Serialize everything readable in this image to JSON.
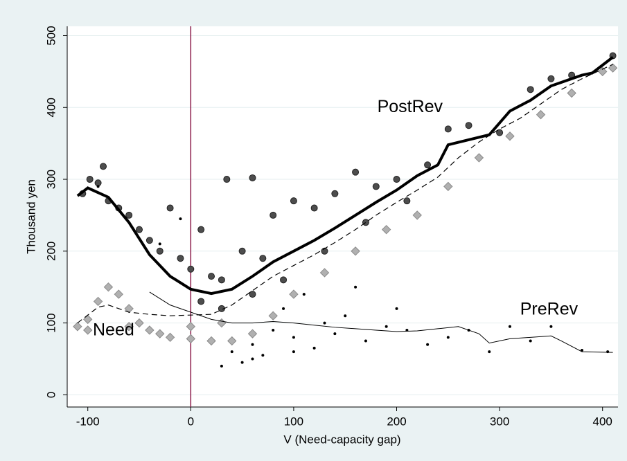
{
  "chart_data": {
    "type": "scatter",
    "x_label": "V (Need-capacity gap)",
    "y_label": "Thousand yen",
    "xlim": [
      -120,
      415
    ],
    "ylim": [
      -17,
      513
    ],
    "xticks": [
      -100,
      0,
      100,
      200,
      300,
      400
    ],
    "yticks": [
      0,
      100,
      200,
      300,
      400,
      500
    ],
    "grid": true,
    "vline": {
      "x": 0,
      "color": "#8b1a4a"
    },
    "annotations": [
      {
        "text": "PostRev",
        "x": 213,
        "y": 400
      },
      {
        "text": "PreRev",
        "x": 348,
        "y": 118
      },
      {
        "text": "Need",
        "x": -75,
        "y": 89
      }
    ],
    "series": [
      {
        "style": "diamond",
        "color": "#b0b0b0",
        "x": [
          -110,
          -100,
          -90,
          -80,
          -70,
          -60,
          -50,
          -40,
          -30,
          -20,
          0,
          20,
          40,
          60,
          80,
          100,
          130,
          160,
          190,
          220,
          250,
          280,
          310,
          340,
          370,
          400,
          410,
          -100,
          -60,
          0,
          30
        ],
        "values": [
          95,
          105,
          130,
          150,
          140,
          120,
          100,
          90,
          85,
          80,
          78,
          75,
          75,
          85,
          110,
          140,
          170,
          200,
          230,
          250,
          290,
          330,
          360,
          390,
          420,
          450,
          455,
          90,
          95,
          95,
          100
        ]
      },
      {
        "style": "circle",
        "color": "#4d4d4d",
        "x": [
          -105,
          -98,
          -90,
          -85,
          -80,
          -70,
          -60,
          -50,
          -40,
          -30,
          -20,
          -10,
          0,
          10,
          20,
          30,
          35,
          50,
          60,
          70,
          80,
          100,
          120,
          140,
          160,
          180,
          200,
          230,
          250,
          270,
          300,
          330,
          350,
          370,
          410,
          10,
          30,
          60,
          90,
          130,
          170,
          210
        ],
        "values": [
          280,
          300,
          295,
          318,
          270,
          260,
          250,
          230,
          215,
          200,
          260,
          190,
          175,
          230,
          165,
          160,
          300,
          200,
          302,
          190,
          250,
          270,
          260,
          280,
          310,
          290,
          300,
          320,
          370,
          375,
          365,
          425,
          440,
          445,
          472,
          130,
          120,
          140,
          160,
          200,
          240,
          270
        ]
      },
      {
        "style": "dot",
        "color": "#000000",
        "x": [
          40,
          50,
          60,
          70,
          80,
          90,
          100,
          110,
          120,
          130,
          140,
          160,
          170,
          190,
          210,
          230,
          250,
          270,
          290,
          310,
          330,
          350,
          380,
          405,
          -30,
          -10,
          -90,
          30,
          60,
          100,
          150,
          200
        ],
        "values": [
          60,
          45,
          70,
          55,
          90,
          120,
          80,
          140,
          65,
          100,
          85,
          150,
          75,
          95,
          90,
          70,
          80,
          90,
          60,
          95,
          75,
          95,
          62,
          60,
          210,
          245,
          290,
          40,
          50,
          60,
          110,
          120
        ]
      },
      {
        "style": "dashed-line",
        "color": "#000000",
        "x": [
          -110,
          -90,
          -80,
          -60,
          -40,
          -20,
          0,
          20,
          40,
          60,
          80,
          100,
          120,
          140,
          160,
          180,
          200,
          220,
          240,
          260,
          280,
          300,
          320,
          340,
          360,
          380,
          410
        ],
        "values": [
          100,
          122,
          125,
          115,
          112,
          110,
          111,
          112,
          125,
          145,
          165,
          180,
          195,
          212,
          230,
          250,
          268,
          285,
          303,
          330,
          352,
          370,
          385,
          405,
          425,
          440,
          460
        ]
      },
      {
        "style": "thin-line",
        "color": "#000000",
        "x": [
          -40,
          -20,
          0,
          20,
          40,
          60,
          80,
          100,
          120,
          140,
          160,
          180,
          200,
          220,
          240,
          260,
          280,
          290,
          310,
          330,
          350,
          360,
          380,
          410
        ],
        "values": [
          143,
          125,
          115,
          105,
          100,
          100,
          102,
          100,
          97,
          94,
          92,
          90,
          88,
          89,
          92,
          95,
          85,
          72,
          78,
          80,
          82,
          75,
          60,
          59
        ]
      },
      {
        "style": "thick-line",
        "color": "#000000",
        "x": [
          -110,
          -100,
          -80,
          -60,
          -40,
          -20,
          0,
          20,
          40,
          60,
          80,
          100,
          120,
          140,
          160,
          180,
          200,
          220,
          240,
          250,
          270,
          290,
          310,
          330,
          350,
          370,
          380,
          390,
          410
        ],
        "values": [
          277,
          288,
          275,
          240,
          195,
          165,
          147,
          141,
          147,
          165,
          185,
          200,
          215,
          232,
          250,
          268,
          285,
          305,
          320,
          348,
          355,
          362,
          395,
          410,
          430,
          440,
          445,
          448,
          470
        ]
      }
    ]
  }
}
